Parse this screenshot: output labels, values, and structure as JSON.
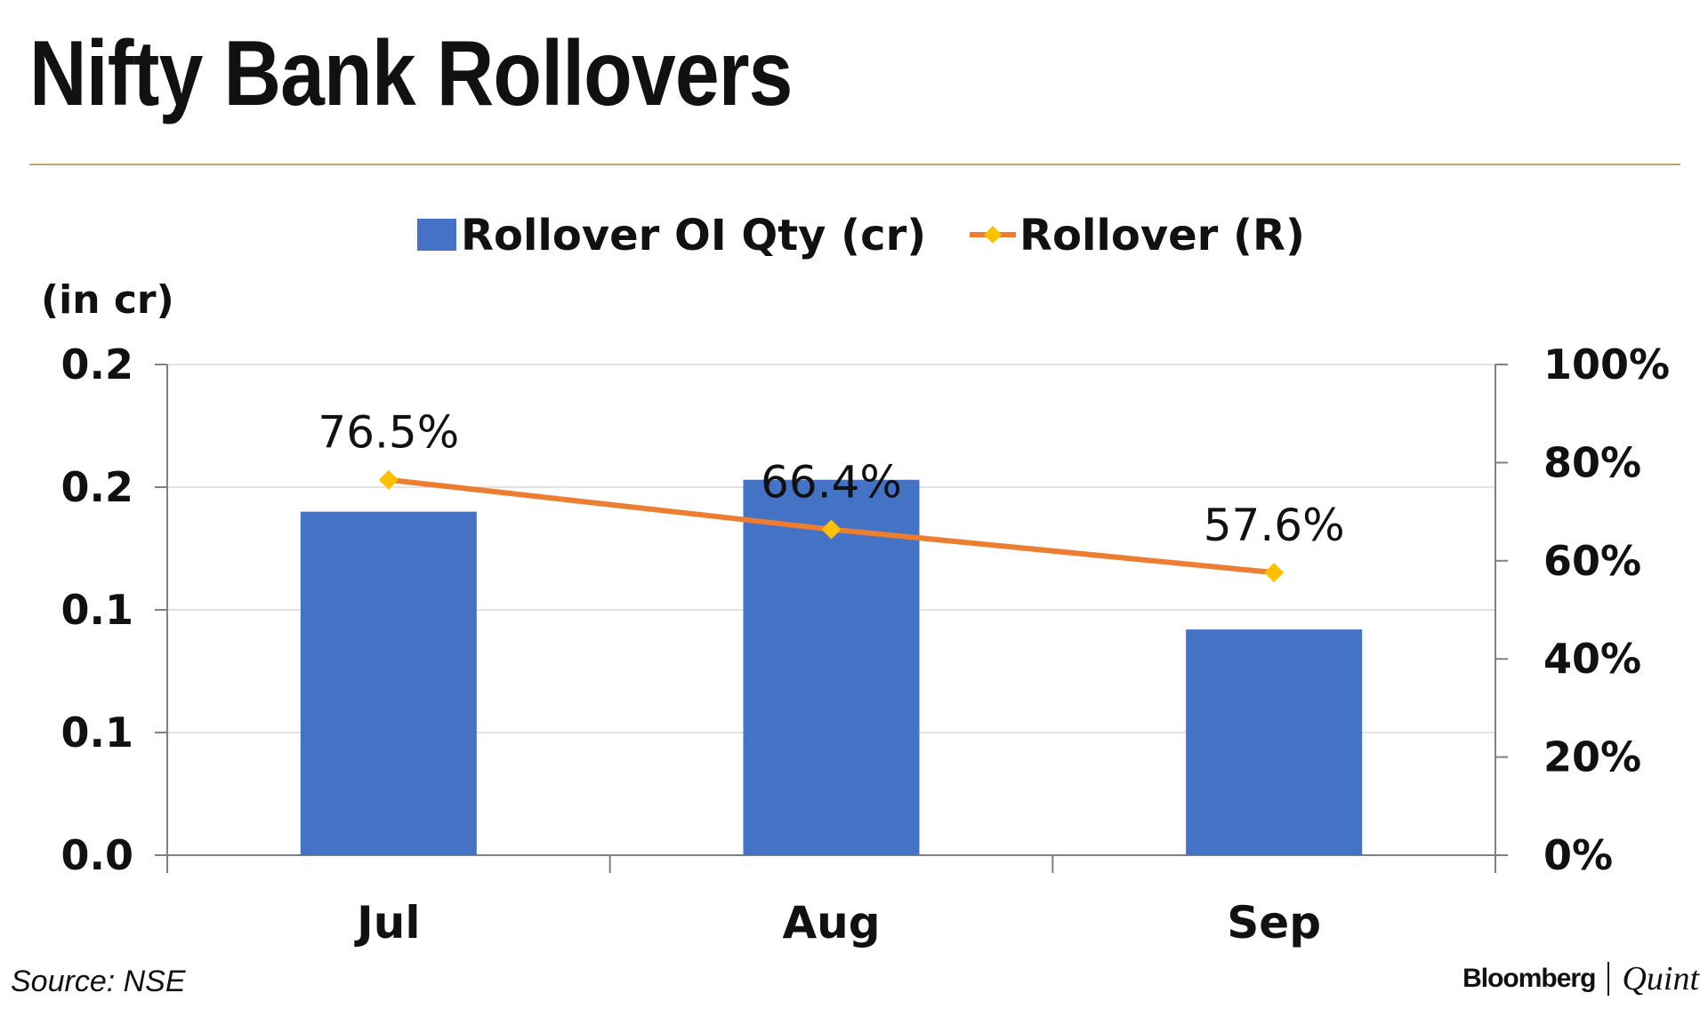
{
  "title": "Nifty Bank Rollovers",
  "source": "Source: NSE",
  "brand": {
    "name": "Bloomberg",
    "suffix": "Quint"
  },
  "colors": {
    "bar": "#4472c4",
    "line": "#ed7d31",
    "marker": "#ffc000",
    "rule": "#c7a86a",
    "grid": "#d9d9d9",
    "axis": "#808080"
  },
  "chart_data": {
    "type": "bar",
    "title": "Nifty Bank Rollovers",
    "categories": [
      "Jul",
      "Aug",
      "Sep"
    ],
    "left_axis": {
      "label": "(in cr)",
      "range": [
        0,
        0.2
      ],
      "tick_labels": [
        "0.0",
        "0.1",
        "0.1",
        "0.2",
        "0.2"
      ]
    },
    "right_axis": {
      "range": [
        0,
        100
      ],
      "tick_labels": [
        "0%",
        "20%",
        "40%",
        "60%",
        "80%",
        "100%"
      ]
    },
    "legend_position": "top-center",
    "grid": true,
    "series": [
      {
        "name": "Rollover OI Qty (cr)",
        "type": "bar",
        "axis": "left",
        "values": [
          0.14,
          0.153,
          0.092
        ]
      },
      {
        "name": "Rollover (R)",
        "type": "line",
        "axis": "right",
        "values": [
          76.5,
          66.4,
          57.6
        ],
        "data_labels": [
          "76.5%",
          "66.4%",
          "57.6%"
        ]
      }
    ]
  }
}
